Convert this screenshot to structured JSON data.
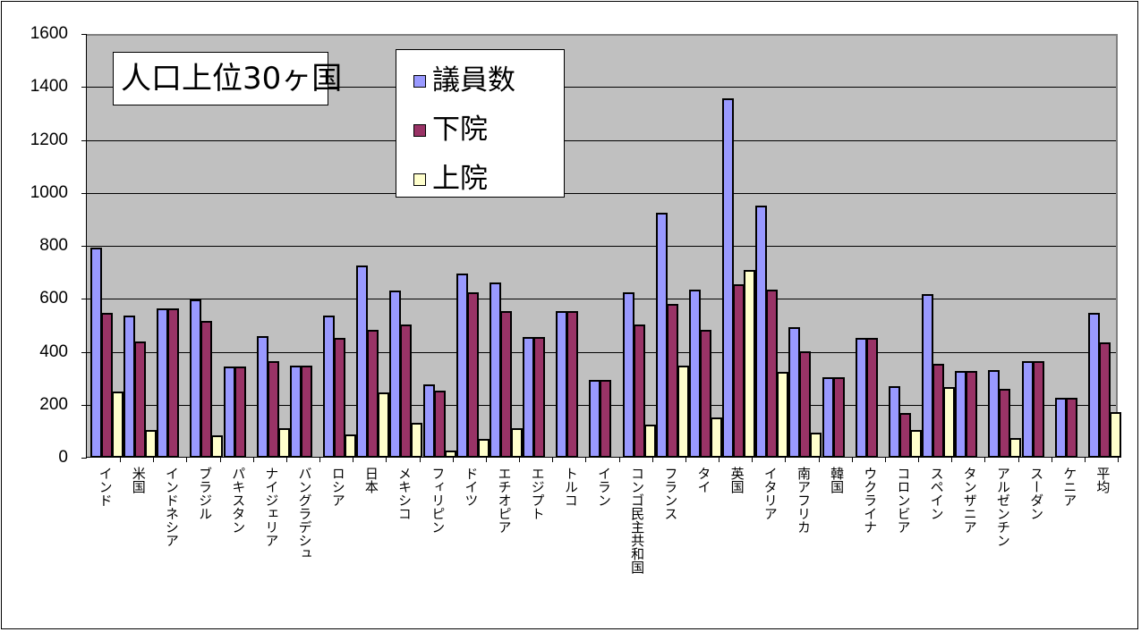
{
  "chart_data": {
    "type": "bar",
    "title": "人口上位30ヶ国",
    "xlabel": "",
    "ylabel": "",
    "ylim": [
      0,
      1600
    ],
    "yticks": [
      0,
      200,
      400,
      600,
      800,
      1000,
      1200,
      1400,
      1600
    ],
    "grid": true,
    "legend_position": "top-left-inside",
    "categories": [
      "インド",
      "米国",
      "インドネシア",
      "ブラジル",
      "パキスタン",
      "ナイジェリア",
      "バングラデシュ",
      "ロシア",
      "日本",
      "メキシコ",
      "フィリピン",
      "ドイツ",
      "エチオピア",
      "エジプト",
      "トルコ",
      "イラン",
      "コンゴ民主共和国",
      "フランス",
      "タイ",
      "英国",
      "イタリア",
      "南アフリカ",
      "韓国",
      "ウクライナ",
      "コロンビア",
      "スペイン",
      "タンザニア",
      "アルゼンチン",
      "スーダン",
      "ケニア",
      "平均"
    ],
    "series": [
      {
        "name": "議員数",
        "color": "#9999ff",
        "values": [
          790,
          535,
          560,
          594,
          342,
          455,
          345,
          533,
          722,
          628,
          275,
          691,
          657,
          454,
          550,
          290,
          620,
          920,
          630,
          1352,
          950,
          490,
          299,
          450,
          268,
          614,
          324,
          329,
          360,
          224,
          545
        ]
      },
      {
        "name": "下院",
        "color": "#993366",
        "values": [
          545,
          435,
          560,
          513,
          342,
          360,
          345,
          450,
          480,
          500,
          250,
          620,
          550,
          454,
          550,
          290,
          500,
          577,
          480,
          650,
          630,
          400,
          299,
          450,
          166,
          350,
          324,
          257,
          360,
          224,
          432
        ]
      },
      {
        "name": "上院",
        "color": "#ffffcc",
        "values": [
          245,
          100,
          0,
          81,
          0,
          109,
          0,
          84,
          242,
          128,
          24,
          69,
          108,
          0,
          0,
          0,
          120,
          343,
          150,
          706,
          322,
          90,
          0,
          0,
          102,
          264,
          0,
          72,
          0,
          0,
          168
        ]
      }
    ]
  },
  "title": "人口上位30ヶ国",
  "legend": {
    "items": [
      {
        "label": "議員数",
        "color": "#9999ff"
      },
      {
        "label": "下院",
        "color": "#993366"
      },
      {
        "label": "上院",
        "color": "#ffffcc"
      }
    ]
  },
  "y_axis": {
    "labels": [
      "1600",
      "1400",
      "1200",
      "1000",
      "800",
      "600",
      "400",
      "200",
      "0"
    ]
  }
}
